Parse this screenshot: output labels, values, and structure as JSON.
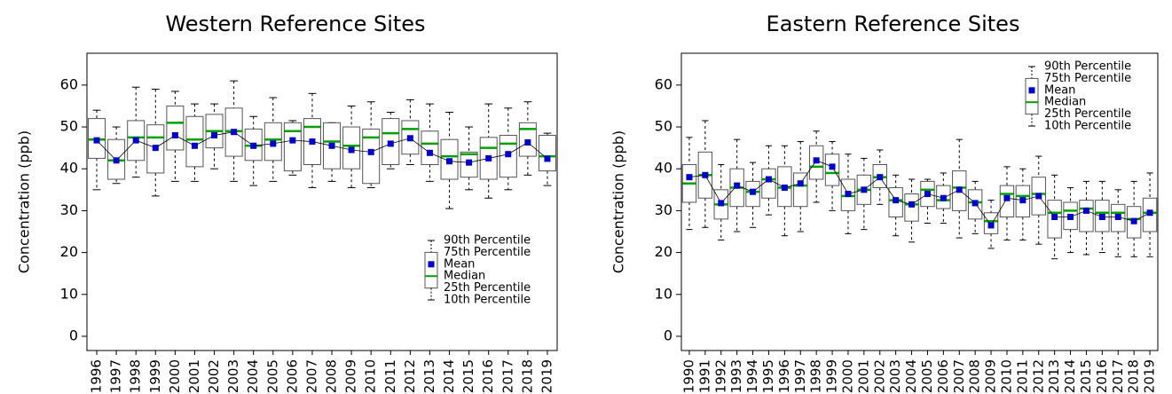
{
  "chart_data": [
    {
      "type": "box",
      "title": "Western Reference Sites",
      "y_label": "Concentration (ppb)",
      "categories": [
        "1996",
        "1997",
        "1998",
        "1999",
        "2000",
        "2001",
        "2002",
        "2003",
        "2004",
        "2005",
        "2006",
        "2007",
        "2008",
        "2009",
        "2010",
        "2011",
        "2012",
        "2013",
        "2014",
        "2015",
        "2016",
        "2017",
        "2018",
        "2019"
      ],
      "ylim": [
        -3.4,
        67.6
      ],
      "yticks": [
        0,
        10,
        20,
        30,
        40,
        50,
        60
      ],
      "legend": "lower right",
      "series": [
        {
          "name": "90th Percentile",
          "color": "#000000",
          "values": [
            54,
            50,
            59.5,
            59,
            58.5,
            55.5,
            55.5,
            61,
            52.5,
            57,
            51.5,
            58,
            51,
            55,
            56,
            53.5,
            56.5,
            55.5,
            53.5,
            50,
            55.5,
            54.5,
            56,
            48.5
          ]
        },
        {
          "name": "75th Percentile",
          "color": "#000000",
          "values": [
            52,
            47,
            51.5,
            50.5,
            55,
            52.5,
            53,
            54.5,
            49.5,
            51,
            51,
            52,
            51,
            50,
            49.5,
            52,
            51.5,
            49,
            47,
            44,
            47.5,
            48,
            51,
            48
          ]
        },
        {
          "name": "Mean",
          "color": "#0000cc",
          "values": [
            46.8,
            42,
            46.8,
            45,
            48,
            45.5,
            48,
            48.8,
            45.5,
            46,
            46.8,
            46.5,
            45.5,
            44.5,
            44,
            46,
            47.3,
            43.8,
            41.8,
            41.5,
            42.5,
            43.5,
            46.3,
            42.4
          ]
        },
        {
          "name": "Median",
          "color": "#00a000",
          "values": [
            47,
            42,
            47.5,
            47.5,
            51,
            47,
            49,
            49,
            45.5,
            47,
            49,
            50,
            46.5,
            45.5,
            47.5,
            48.5,
            49.5,
            46,
            43,
            43.5,
            45,
            46,
            49.5,
            43
          ]
        },
        {
          "name": "25th Percentile",
          "color": "#000000",
          "values": [
            42.5,
            37.5,
            42,
            39,
            44.5,
            40.5,
            45,
            43,
            42,
            42,
            39.5,
            41,
            40,
            40,
            36.5,
            41,
            43.5,
            41,
            37.5,
            38,
            37.5,
            38,
            43,
            39.5
          ]
        },
        {
          "name": "10th Percentile",
          "color": "#000000",
          "values": [
            35,
            36.5,
            38,
            33.5,
            37,
            37,
            40,
            37,
            36,
            37,
            38.5,
            35.5,
            37,
            35.5,
            35.5,
            40,
            41,
            37,
            30.5,
            35,
            33,
            35,
            38.5,
            36
          ]
        }
      ]
    },
    {
      "type": "box",
      "title": "Eastern Reference Sites",
      "y_label": "Concentration (ppb)",
      "categories": [
        "1990",
        "1991",
        "1992",
        "1993",
        "1994",
        "1995",
        "1996",
        "1997",
        "1998",
        "1999",
        "2000",
        "2001",
        "2002",
        "2003",
        "2004",
        "2005",
        "2006",
        "2007",
        "2008",
        "2009",
        "2010",
        "2011",
        "2012",
        "2013",
        "2014",
        "2015",
        "2016",
        "2017",
        "2018",
        "2019"
      ],
      "ylim": [
        -3.4,
        67.6
      ],
      "yticks": [
        0,
        10,
        20,
        30,
        40,
        50,
        60
      ],
      "legend": "upper right",
      "series": [
        {
          "name": "90th Percentile",
          "color": "#000000",
          "values": [
            47.5,
            51.5,
            41,
            47,
            41.5,
            45.5,
            45.5,
            46.5,
            49,
            46.5,
            43.5,
            42.5,
            44.5,
            38.5,
            37.5,
            37.5,
            39,
            47,
            37,
            32.5,
            40.5,
            40,
            43,
            38.5,
            35.5,
            37,
            37,
            35,
            37,
            39
          ]
        },
        {
          "name": "75th Percentile",
          "color": "#000000",
          "values": [
            41,
            44,
            35,
            40,
            37,
            40,
            40.5,
            39,
            45.5,
            43.5,
            37.5,
            38.5,
            41,
            35.5,
            34,
            37,
            36,
            39.5,
            35,
            29.5,
            36,
            36,
            38,
            32.5,
            32,
            32.5,
            32.5,
            31.5,
            31,
            33
          ]
        },
        {
          "name": "Mean",
          "color": "#0000cc",
          "values": [
            38,
            38.5,
            31.8,
            36,
            34.5,
            37.5,
            35.5,
            36.5,
            42,
            40.5,
            34,
            35,
            38,
            32.5,
            31.5,
            34,
            33,
            35,
            31.8,
            26.5,
            33,
            32.5,
            33.5,
            28.5,
            28.5,
            30,
            28.5,
            28.5,
            27.5,
            29.5
          ]
        },
        {
          "name": "Median",
          "color": "#00a000",
          "values": [
            36.5,
            38.5,
            31.5,
            35.5,
            34.5,
            37.5,
            35.5,
            36,
            40.5,
            39,
            33.5,
            35,
            38,
            32.5,
            31.5,
            35,
            32.5,
            35.5,
            32,
            27.5,
            34,
            33.5,
            34,
            29.5,
            30,
            30.5,
            29.5,
            29.5,
            28,
            29.5
          ]
        },
        {
          "name": "25th Percentile",
          "color": "#000000",
          "values": [
            32,
            33,
            28,
            31,
            31,
            33,
            31,
            31,
            37.5,
            36,
            30,
            31.5,
            35.5,
            28.5,
            27.5,
            31,
            30.5,
            30,
            28,
            24.5,
            28.5,
            28.5,
            29,
            23.5,
            25.5,
            25,
            25,
            25,
            23.5,
            25
          ]
        },
        {
          "name": "10th Percentile",
          "color": "#000000",
          "values": [
            25.5,
            26,
            23,
            25,
            26,
            29,
            24,
            25,
            32,
            30,
            24.5,
            25.5,
            31.5,
            24,
            22.5,
            27,
            27,
            23.5,
            24.5,
            21,
            23,
            23,
            22,
            18.5,
            20,
            19.5,
            20,
            19,
            19,
            19
          ]
        }
      ]
    }
  ]
}
